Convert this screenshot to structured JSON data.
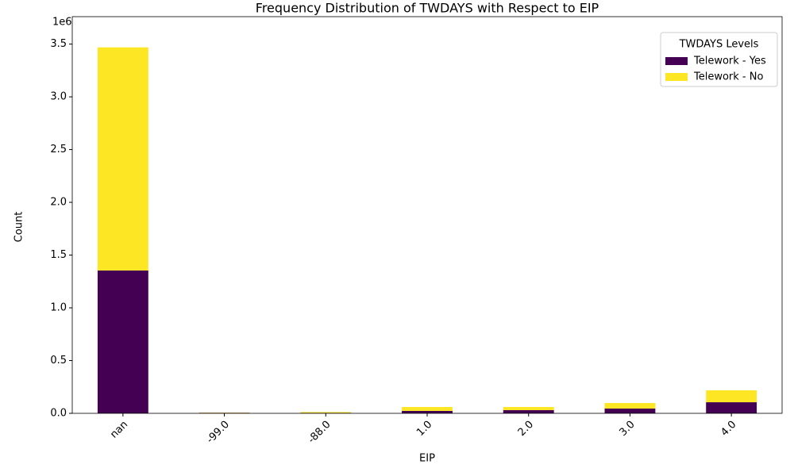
{
  "chart_data": {
    "type": "stacked_bar",
    "title": "Frequency Distribution of TWDAYS with Respect to EIP",
    "x_label": "EIP",
    "y_label": "Count",
    "y_offset_label": "1e6",
    "categories": [
      "nan",
      "-99.0",
      "-88.0",
      "1.0",
      "2.0",
      "3.0",
      "4.0"
    ],
    "series": [
      {
        "name": "Telework - Yes",
        "color": "#440154",
        "values": [
          1.354,
          0.005,
          0.004,
          0.023,
          0.03,
          0.045,
          0.105
        ]
      },
      {
        "name": "Telework - No",
        "color": "#fde725",
        "values": [
          2.115,
          0.002,
          0.008,
          0.037,
          0.03,
          0.053,
          0.113
        ]
      }
    ],
    "legend_title": "TWDAYS Levels",
    "legend": "upper right",
    "ylim": [
      0,
      3.76
    ],
    "yticks": [
      {
        "value": 0,
        "label": "0.0"
      },
      0.5,
      {
        "value": 1,
        "label": "1.0"
      },
      1.5,
      {
        "value": 2,
        "label": "2.0"
      },
      2.5,
      {
        "value": 3,
        "label": "3.0"
      },
      3.5
    ]
  }
}
